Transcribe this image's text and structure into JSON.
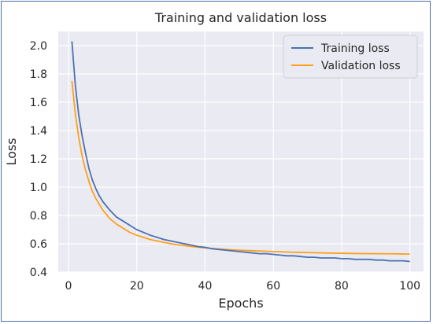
{
  "chart_data": {
    "type": "line",
    "title": "Training and validation loss",
    "xlabel": "Epochs",
    "ylabel": "Loss",
    "xlim": [
      -3,
      104
    ],
    "ylim": [
      0.4,
      2.1
    ],
    "xticks": [
      0,
      20,
      40,
      60,
      80,
      100
    ],
    "yticks": [
      0.4,
      0.6,
      0.8,
      1.0,
      1.2,
      1.4,
      1.6,
      1.8,
      2.0
    ],
    "xtick_labels": [
      "0",
      "20",
      "40",
      "60",
      "80",
      "100"
    ],
    "ytick_labels": [
      "0.4",
      "0.6",
      "0.8",
      "1.0",
      "1.2",
      "1.4",
      "1.6",
      "1.8",
      "2.0"
    ],
    "grid": true,
    "legend_position": "top-right",
    "background": "#eaeaf2",
    "series": [
      {
        "name": "Training loss",
        "color": "#4c72b0",
        "x": [
          1,
          2,
          3,
          4,
          5,
          6,
          7,
          8,
          9,
          10,
          12,
          14,
          16,
          18,
          20,
          22,
          24,
          26,
          28,
          30,
          32,
          34,
          36,
          38,
          40,
          42,
          44,
          46,
          48,
          50,
          52,
          54,
          56,
          58,
          60,
          62,
          64,
          66,
          68,
          70,
          72,
          74,
          76,
          78,
          80,
          82,
          84,
          86,
          88,
          90,
          92,
          94,
          96,
          98,
          100
        ],
        "y": [
          2.03,
          1.72,
          1.51,
          1.36,
          1.24,
          1.13,
          1.05,
          0.99,
          0.94,
          0.9,
          0.84,
          0.79,
          0.76,
          0.73,
          0.7,
          0.68,
          0.66,
          0.645,
          0.63,
          0.62,
          0.61,
          0.6,
          0.59,
          0.58,
          0.575,
          0.565,
          0.56,
          0.555,
          0.55,
          0.545,
          0.54,
          0.535,
          0.53,
          0.53,
          0.525,
          0.52,
          0.515,
          0.515,
          0.51,
          0.505,
          0.505,
          0.5,
          0.5,
          0.5,
          0.495,
          0.495,
          0.49,
          0.49,
          0.49,
          0.485,
          0.485,
          0.48,
          0.48,
          0.48,
          0.475
        ]
      },
      {
        "name": "Validation loss",
        "color": "#ff9f1c",
        "x": [
          1,
          2,
          3,
          4,
          5,
          6,
          7,
          8,
          9,
          10,
          12,
          14,
          16,
          18,
          20,
          22,
          24,
          26,
          28,
          30,
          32,
          34,
          36,
          38,
          40,
          42,
          44,
          46,
          48,
          50,
          55,
          60,
          65,
          70,
          75,
          80,
          85,
          90,
          95,
          100
        ],
        "y": [
          1.75,
          1.52,
          1.35,
          1.22,
          1.12,
          1.04,
          0.97,
          0.92,
          0.88,
          0.84,
          0.78,
          0.74,
          0.71,
          0.68,
          0.66,
          0.645,
          0.63,
          0.62,
          0.61,
          0.6,
          0.593,
          0.587,
          0.581,
          0.576,
          0.571,
          0.567,
          0.563,
          0.56,
          0.557,
          0.555,
          0.55,
          0.545,
          0.541,
          0.538,
          0.535,
          0.533,
          0.531,
          0.53,
          0.529,
          0.527
        ]
      }
    ]
  }
}
